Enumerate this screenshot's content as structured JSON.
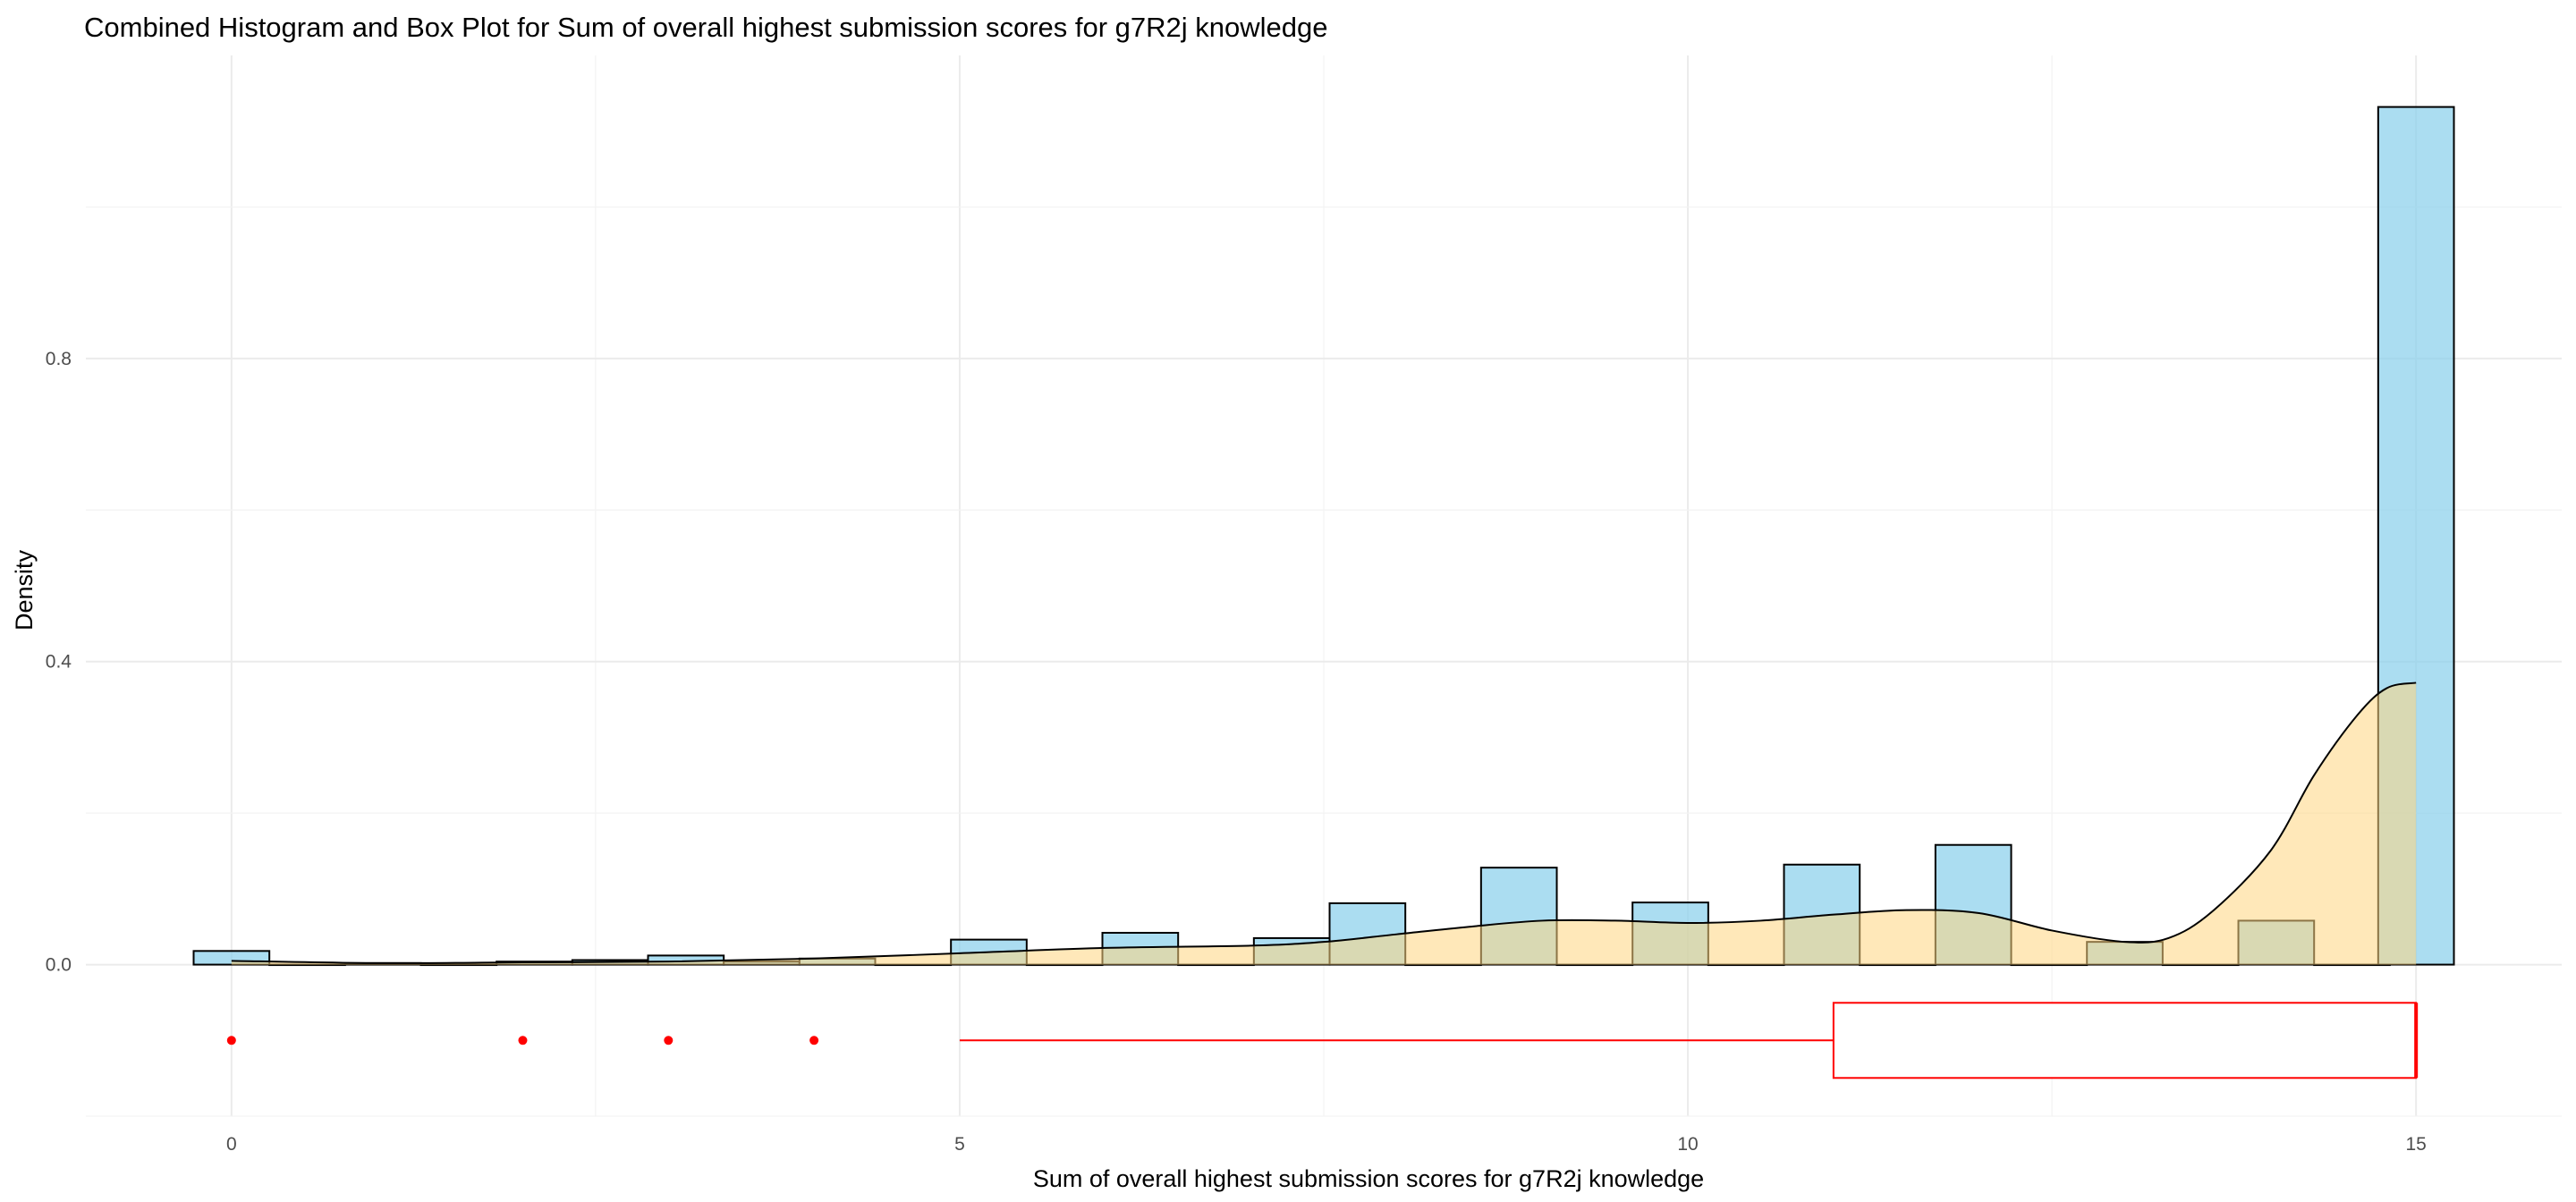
{
  "chart_data": {
    "type": "histogram",
    "title": "Combined Histogram and Box Plot for Sum of overall highest submission scores for g7R2j knowledge",
    "xlabel": "Sum of overall highest submission scores for g7R2j knowledge",
    "ylabel": "Density",
    "xlim": [
      -1.0,
      16.0
    ],
    "ylim": [
      -0.2,
      1.2
    ],
    "x_ticks": [
      0,
      5,
      10,
      15
    ],
    "x_tick_labels": [
      "0",
      "5",
      "10",
      "15"
    ],
    "y_ticks": [
      0.0,
      0.4,
      0.8
    ],
    "y_tick_labels": [
      "0.0",
      "0.4",
      "0.8"
    ],
    "grid": true,
    "histogram": {
      "bin_width": 0.52,
      "fill": "#87ceeb",
      "edge": "#000000",
      "bins": [
        {
          "center": 0.0,
          "density": 0.018
        },
        {
          "center": 0.52,
          "density": 0.0
        },
        {
          "center": 1.04,
          "density": 0.002
        },
        {
          "center": 1.56,
          "density": 0.0
        },
        {
          "center": 2.08,
          "density": 0.004
        },
        {
          "center": 2.6,
          "density": 0.006
        },
        {
          "center": 3.12,
          "density": 0.012
        },
        {
          "center": 3.64,
          "density": 0.004
        },
        {
          "center": 4.16,
          "density": 0.008
        },
        {
          "center": 4.68,
          "density": 0.0
        },
        {
          "center": 5.2,
          "density": 0.033
        },
        {
          "center": 5.72,
          "density": 0.0
        },
        {
          "center": 6.24,
          "density": 0.042
        },
        {
          "center": 6.76,
          "density": 0.0
        },
        {
          "center": 7.28,
          "density": 0.035
        },
        {
          "center": 7.8,
          "density": 0.081
        },
        {
          "center": 8.32,
          "density": 0.0
        },
        {
          "center": 8.84,
          "density": 0.128
        },
        {
          "center": 9.36,
          "density": 0.0
        },
        {
          "center": 9.88,
          "density": 0.082
        },
        {
          "center": 10.4,
          "density": 0.0
        },
        {
          "center": 10.92,
          "density": 0.132
        },
        {
          "center": 11.44,
          "density": 0.0
        },
        {
          "center": 11.96,
          "density": 0.158
        },
        {
          "center": 12.48,
          "density": 0.0
        },
        {
          "center": 13.0,
          "density": 0.03
        },
        {
          "center": 13.52,
          "density": 0.0
        },
        {
          "center": 14.04,
          "density": 0.058
        },
        {
          "center": 14.56,
          "density": 0.0
        },
        {
          "center": 15.0,
          "density": 1.132
        }
      ]
    },
    "density_curve": {
      "fill": "#ffd580",
      "edge": "#000000",
      "x": [
        0,
        1,
        2,
        3,
        4,
        5,
        6,
        7,
        7.5,
        8,
        8.5,
        9,
        9.5,
        10,
        10.5,
        11,
        11.5,
        12,
        12.5,
        13,
        13.3,
        13.6,
        14,
        14.3,
        14.6,
        14.8,
        15
      ],
      "y": [
        0.005,
        0.002,
        0.003,
        0.004,
        0.008,
        0.015,
        0.022,
        0.025,
        0.03,
        0.04,
        0.05,
        0.058,
        0.058,
        0.055,
        0.058,
        0.066,
        0.072,
        0.068,
        0.045,
        0.03,
        0.035,
        0.07,
        0.15,
        0.25,
        0.33,
        0.365,
        0.372
      ]
    },
    "boxplot": {
      "color": "#ff0000",
      "y_position": -0.1,
      "whisker_low": 5,
      "q1": 11,
      "median": 15,
      "q3": 15,
      "whisker_high": 15,
      "outliers": [
        0,
        2,
        3,
        4
      ]
    }
  }
}
